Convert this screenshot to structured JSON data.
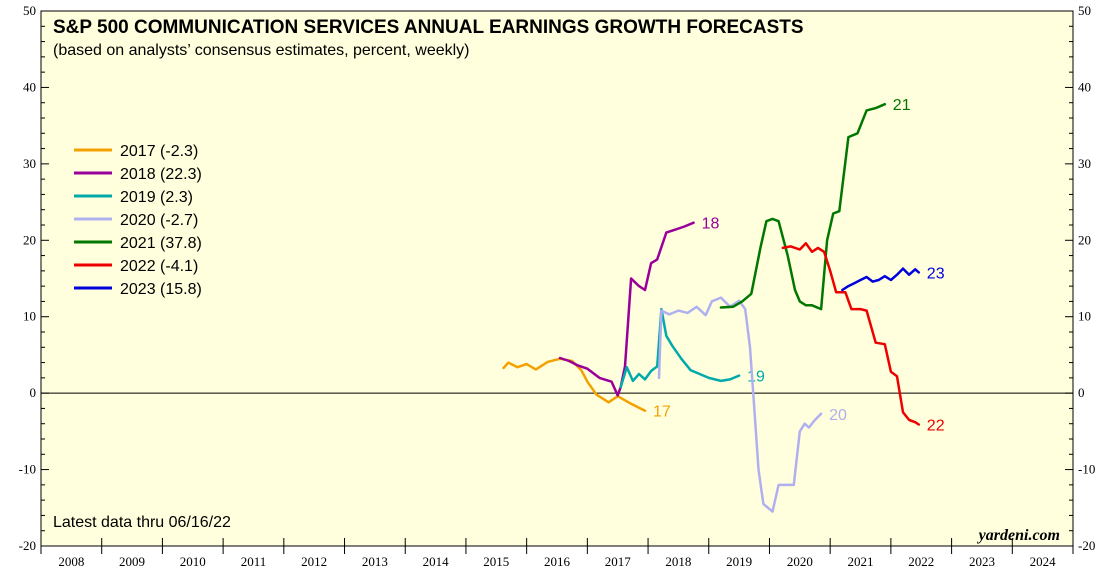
{
  "chart_data": {
    "type": "line",
    "title": "S&P 500 COMMUNICATION SERVICES ANNUAL EARNINGS GROWTH FORECASTS",
    "subtitle": "(based on analysts’ consensus estimates, percent, weekly)",
    "ylim": [
      -20,
      50
    ],
    "yticks": [
      -20,
      -10,
      0,
      10,
      20,
      30,
      40,
      50
    ],
    "xlim": [
      2008,
      2025
    ],
    "xtick_labels": [
      "2008",
      "2009",
      "2010",
      "2011",
      "2012",
      "2013",
      "2014",
      "2015",
      "2016",
      "2017",
      "2018",
      "2019",
      "2020",
      "2021",
      "2022",
      "2023",
      "2024"
    ],
    "note": "Latest data thru 06/16/22",
    "source": "yardeni.com",
    "legend_position": "left",
    "series": [
      {
        "name": "2017 (-2.3)",
        "end_label": "17",
        "color": "#F4A000",
        "x": [
          2015.62,
          2015.7,
          2015.85,
          2016.0,
          2016.15,
          2016.35,
          2016.55,
          2016.75,
          2016.9,
          2017.0,
          2017.15,
          2017.35,
          2017.5,
          2017.7,
          2017.85,
          2017.95
        ],
        "y": [
          3.3,
          4.0,
          3.4,
          3.8,
          3.1,
          4.1,
          4.5,
          4.2,
          3.0,
          1.5,
          -0.2,
          -1.2,
          -0.4,
          -1.3,
          -1.9,
          -2.3
        ]
      },
      {
        "name": "2018 (22.3)",
        "end_label": "18",
        "color": "#990099",
        "x": [
          2016.55,
          2016.7,
          2016.85,
          2017.0,
          2017.2,
          2017.4,
          2017.5,
          2017.55,
          2017.62,
          2017.72,
          2017.85,
          2017.95,
          2018.05,
          2018.15,
          2018.3,
          2018.45,
          2018.6,
          2018.75
        ],
        "y": [
          4.6,
          4.2,
          3.6,
          3.2,
          2.0,
          1.5,
          -0.3,
          0.8,
          3.5,
          15.0,
          14.0,
          13.5,
          17.0,
          17.5,
          21.0,
          21.4,
          21.8,
          22.3
        ]
      },
      {
        "name": "2019 (2.3)",
        "end_label": "19",
        "color": "#00AAAA",
        "x": [
          2017.55,
          2017.65,
          2017.75,
          2017.85,
          2017.95,
          2018.05,
          2018.15,
          2018.22,
          2018.3,
          2018.4,
          2018.55,
          2018.7,
          2018.85,
          2019.0,
          2019.2,
          2019.35,
          2019.5
        ],
        "y": [
          0.8,
          3.4,
          1.6,
          2.5,
          1.8,
          2.9,
          3.5,
          11.0,
          7.5,
          6.2,
          4.5,
          3.0,
          2.5,
          2.0,
          1.6,
          1.8,
          2.3
        ]
      },
      {
        "name": "2020 (-2.7)",
        "end_label": "20",
        "color": "#B0B0F0",
        "x": [
          2018.18,
          2018.22,
          2018.35,
          2018.5,
          2018.65,
          2018.8,
          2018.95,
          2019.05,
          2019.2,
          2019.35,
          2019.5,
          2019.6,
          2019.68,
          2019.75,
          2019.82,
          2019.9,
          2020.05,
          2020.15,
          2020.25,
          2020.4,
          2020.5,
          2020.58,
          2020.65,
          2020.75,
          2020.85
        ],
        "y": [
          2.0,
          10.8,
          10.3,
          10.8,
          10.5,
          11.3,
          10.2,
          12.0,
          12.5,
          11.3,
          12.1,
          11.0,
          6.0,
          -2.0,
          -10.0,
          -14.5,
          -15.5,
          -12.0,
          -12.0,
          -12.0,
          -5.0,
          -4.0,
          -4.5,
          -3.5,
          -2.7
        ]
      },
      {
        "name": "2021 (37.8)",
        "end_label": "21",
        "color": "#007700",
        "x": [
          2019.2,
          2019.4,
          2019.55,
          2019.7,
          2019.85,
          2019.95,
          2020.05,
          2020.15,
          2020.3,
          2020.42,
          2020.5,
          2020.6,
          2020.7,
          2020.85,
          2020.95,
          2021.05,
          2021.15,
          2021.3,
          2021.45,
          2021.6,
          2021.75,
          2021.9
        ],
        "y": [
          11.2,
          11.3,
          12.0,
          13.0,
          19.0,
          22.5,
          22.8,
          22.5,
          18.0,
          13.5,
          12.0,
          11.5,
          11.5,
          11.0,
          20.0,
          23.5,
          23.8,
          33.5,
          34.0,
          37.0,
          37.3,
          37.8
        ]
      },
      {
        "name": "2022 (-4.1)",
        "end_label": "22",
        "color": "#EE0000",
        "x": [
          2020.22,
          2020.35,
          2020.5,
          2020.6,
          2020.7,
          2020.8,
          2020.9,
          2021.0,
          2021.1,
          2021.25,
          2021.35,
          2021.5,
          2021.6,
          2021.75,
          2021.9,
          2022.0,
          2022.1,
          2022.2,
          2022.3,
          2022.4,
          2022.46
        ],
        "y": [
          19.0,
          19.2,
          18.8,
          19.6,
          18.5,
          19.0,
          18.5,
          16.0,
          13.2,
          13.2,
          11.0,
          11.0,
          10.8,
          6.6,
          6.4,
          2.8,
          2.2,
          -2.5,
          -3.5,
          -3.8,
          -4.1
        ]
      },
      {
        "name": "2023 (15.8)",
        "end_label": "23",
        "color": "#0000DD",
        "x": [
          2021.2,
          2021.3,
          2021.4,
          2021.5,
          2021.6,
          2021.7,
          2021.8,
          2021.9,
          2022.0,
          2022.1,
          2022.2,
          2022.3,
          2022.4,
          2022.46
        ],
        "y": [
          13.5,
          14.0,
          14.4,
          14.8,
          15.2,
          14.6,
          14.8,
          15.3,
          14.8,
          15.5,
          16.3,
          15.5,
          16.2,
          15.8
        ]
      }
    ]
  }
}
